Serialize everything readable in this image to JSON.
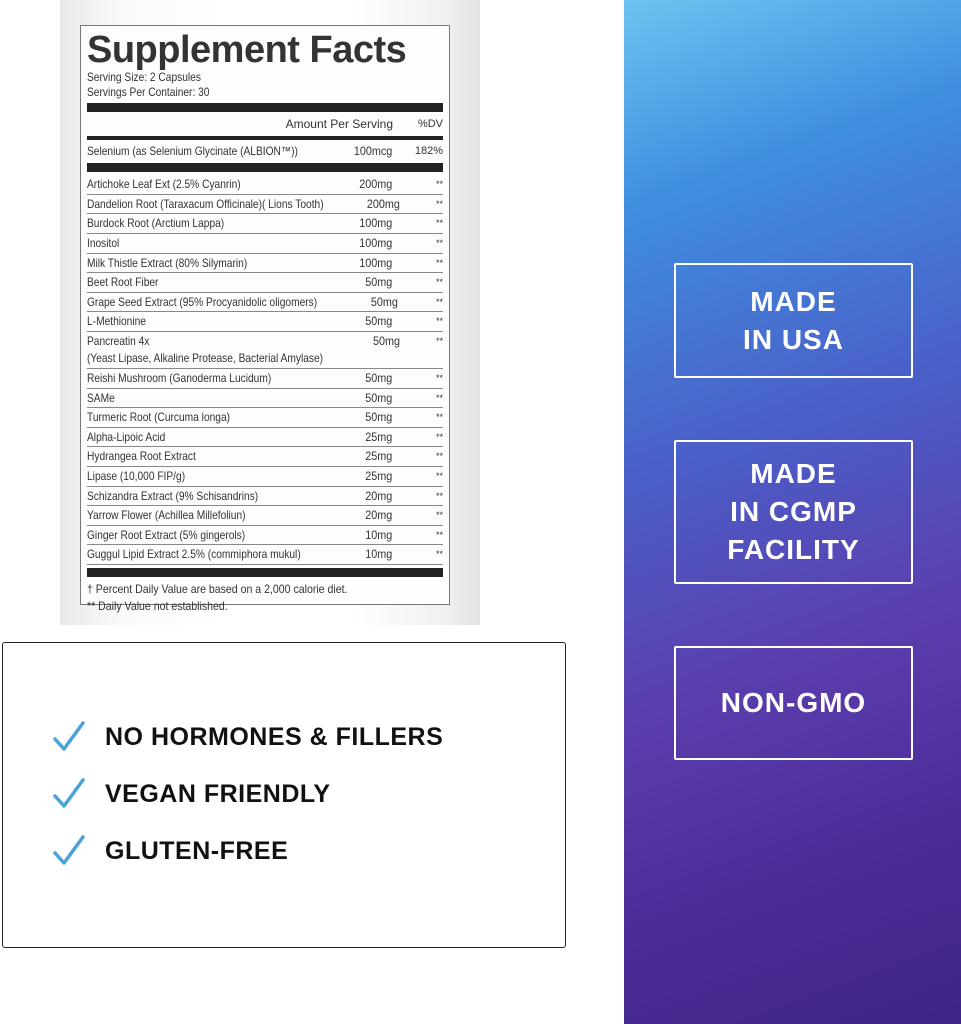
{
  "label": {
    "title": "Supplement Facts",
    "serving_size": "Serving Size: 2 Capsules",
    "servings_per_container": "Servings Per Container: 30",
    "header_amount": "Amount Per Serving",
    "header_dv": "%DV",
    "selenium": {
      "name": "Selenium (as Selenium Glycinate (ALBION™))",
      "amount": "100mcg",
      "dv": "182%"
    },
    "rows": [
      {
        "name": "Artichoke Leaf Ext (2.5% Cyanrin)",
        "amount": "200mg",
        "dv": "**"
      },
      {
        "name": "Dandelion Root (Taraxacum Officinale)( Lions Tooth)",
        "amount": "200mg",
        "dv": "**"
      },
      {
        "name": "Burdock Root (Arctium Lappa)",
        "amount": "100mg",
        "dv": "**"
      },
      {
        "name": "Inositol",
        "amount": "100mg",
        "dv": "**"
      },
      {
        "name": "Milk Thistle Extract (80% Silymarin)",
        "amount": "100mg",
        "dv": "**"
      },
      {
        "name": "Beet Root Fiber",
        "amount": "50mg",
        "dv": "**"
      },
      {
        "name": "Grape Seed Extract (95% Procyanidolic oligomers)",
        "amount": "50mg",
        "dv": "**"
      },
      {
        "name": "L-Methionine",
        "amount": "50mg",
        "dv": "**"
      },
      {
        "name": "Pancreatin 4x",
        "sub": "(Yeast Lipase, Alkaline Protease, Bacterial Amylase)",
        "amount": "50mg",
        "dv": "**"
      },
      {
        "name": "Reishi Mushroom (Ganoderma Lucidum)",
        "amount": "50mg",
        "dv": "**"
      },
      {
        "name": "SAMe",
        "amount": "50mg",
        "dv": "**"
      },
      {
        "name": "Turmeric Root (Curcuma longa)",
        "amount": "50mg",
        "dv": "**"
      },
      {
        "name": "Alpha-Lipoic Acid",
        "amount": "25mg",
        "dv": "**"
      },
      {
        "name": "Hydrangea Root Extract",
        "amount": "25mg",
        "dv": "**"
      },
      {
        "name": "Lipase (10,000 FIP/g)",
        "amount": "25mg",
        "dv": "**"
      },
      {
        "name": "Schizandra Extract (9% Schisandrins)",
        "amount": "20mg",
        "dv": "**"
      },
      {
        "name": "Yarrow Flower (Achillea Millefoliun)",
        "amount": "20mg",
        "dv": "**"
      },
      {
        "name": "Ginger Root Extract (5% gingerols)",
        "amount": "10mg",
        "dv": "**"
      },
      {
        "name": "Guggul Lipid Extract 2.5% (commiphora mukul)",
        "amount": "10mg",
        "dv": "**"
      }
    ],
    "footnote1": "† Percent Daily Value are based on a 2,000 calorie diet.",
    "footnote2": "** Daily Value not established."
  },
  "features": [
    {
      "icon": "checkmark-icon",
      "text": "NO HORMONES & FILLERS"
    },
    {
      "icon": "checkmark-icon",
      "text": "VEGAN FRIENDLY"
    },
    {
      "icon": "checkmark-icon",
      "text": "GLUTEN-FREE"
    }
  ],
  "badges": [
    {
      "lines": [
        "MADE",
        "IN USA"
      ]
    },
    {
      "lines": [
        "MADE",
        "IN CGMP",
        "FACILITY"
      ]
    },
    {
      "lines": [
        "NON-GMO"
      ]
    }
  ],
  "colors": {
    "check": "#4aa3d8",
    "panel_top": "#6cc4f0",
    "panel_bottom": "#3d2585"
  }
}
